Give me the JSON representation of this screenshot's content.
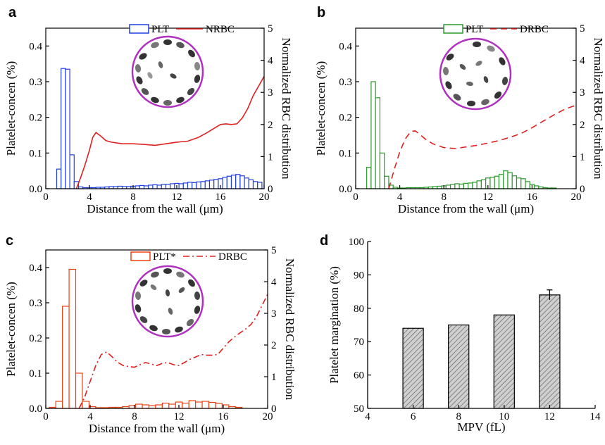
{
  "chart_data": [
    {
      "panel": "a",
      "type": "bar+line",
      "xlabel": "Distance from the wall (μm)",
      "ylabel": "Platelet-concen (%)",
      "y2label": "Normalized RBC distribution",
      "xlim": [
        0,
        20
      ],
      "ylim": [
        0,
        0.45
      ],
      "y2lim": [
        0,
        5
      ],
      "xticks": [
        "0",
        "4",
        "8",
        "12",
        "16",
        "20"
      ],
      "yticks": [
        "0.0",
        "0.1",
        "0.2",
        "0.3",
        "0.4"
      ],
      "y2ticks": [
        "0",
        "1",
        "2",
        "3",
        "4",
        "5"
      ],
      "legend": {
        "position": "top-right",
        "entries": [
          "PLT",
          "NRBC"
        ]
      },
      "bar_color": "#1f3fe0",
      "line_color": "#e02020",
      "line_style": "solid",
      "bar_width": 0.4,
      "bars": {
        "name": "PLT",
        "x": [
          1.2,
          1.6,
          2.0,
          2.4,
          2.8,
          3.2,
          3.6,
          4.0,
          4.4,
          4.8,
          5.2,
          5.6,
          6.0,
          6.4,
          6.8,
          7.2,
          7.6,
          8.0,
          8.4,
          8.8,
          9.2,
          9.6,
          10.0,
          10.4,
          10.8,
          11.2,
          11.6,
          12.0,
          12.4,
          12.8,
          13.2,
          13.6,
          14.0,
          14.4,
          14.8,
          15.2,
          15.6,
          16.0,
          16.4,
          16.8,
          17.2,
          17.6,
          18.0,
          18.4,
          18.8,
          19.2,
          19.6
        ],
        "values": [
          0.055,
          0.337,
          0.335,
          0.095,
          0.02,
          0.005,
          0.003,
          0.003,
          0.003,
          0.004,
          0.004,
          0.005,
          0.006,
          0.006,
          0.007,
          0.006,
          0.006,
          0.007,
          0.008,
          0.009,
          0.008,
          0.01,
          0.011,
          0.01,
          0.012,
          0.012,
          0.014,
          0.015,
          0.014,
          0.016,
          0.018,
          0.017,
          0.019,
          0.02,
          0.022,
          0.024,
          0.026,
          0.028,
          0.032,
          0.035,
          0.038,
          0.04,
          0.036,
          0.03,
          0.025,
          0.02,
          0.018
        ]
      },
      "line": {
        "name": "NRBC",
        "x": [
          2.8,
          3.2,
          3.6,
          4.0,
          4.3,
          4.6,
          5.0,
          5.5,
          6.0,
          7.0,
          8.0,
          9.0,
          10.0,
          11.0,
          12.0,
          13.0,
          14.0,
          14.8,
          15.5,
          16.0,
          16.5,
          17.0,
          17.5,
          18.0,
          18.5,
          19.0,
          19.5,
          20.0
        ],
        "values": [
          0.0,
          0.35,
          0.75,
          1.2,
          1.6,
          1.75,
          1.65,
          1.5,
          1.45,
          1.4,
          1.4,
          1.38,
          1.35,
          1.4,
          1.45,
          1.48,
          1.6,
          1.75,
          1.9,
          2.0,
          2.02,
          2.0,
          2.02,
          2.2,
          2.5,
          2.9,
          3.2,
          3.5
        ]
      }
    },
    {
      "panel": "b",
      "type": "bar+line",
      "xlabel": "Distance from the wall (μm)",
      "ylabel": "Platelet-concen (%)",
      "y2label": "Normalized RBC distribution",
      "xlim": [
        0,
        20
      ],
      "ylim": [
        0,
        0.45
      ],
      "y2lim": [
        0,
        5
      ],
      "xticks": [
        "0",
        "4",
        "8",
        "12",
        "16",
        "20"
      ],
      "yticks": [
        "0.0",
        "0.1",
        "0.2",
        "0.3",
        "0.4"
      ],
      "y2ticks": [
        "0",
        "1",
        "2",
        "3",
        "4",
        "5"
      ],
      "legend": {
        "position": "top-right",
        "entries": [
          "PLT",
          "DRBC"
        ]
      },
      "bar_color": "#2a9a2a",
      "line_color": "#e02020",
      "line_style": "dashed",
      "bar_width": 0.4,
      "bars": {
        "name": "PLT",
        "x": [
          1.2,
          1.6,
          2.0,
          2.4,
          2.8,
          3.2,
          3.6,
          4.0,
          4.4,
          4.8,
          5.2,
          5.6,
          6.0,
          6.4,
          6.8,
          7.2,
          7.6,
          8.0,
          8.4,
          8.8,
          9.2,
          9.6,
          10.0,
          10.4,
          10.8,
          11.2,
          11.6,
          12.0,
          12.4,
          12.8,
          13.2,
          13.6,
          14.0,
          14.4,
          14.8,
          15.2,
          15.6,
          16.0,
          16.4,
          16.8,
          17.2,
          17.6,
          18.0
        ],
        "values": [
          0.06,
          0.3,
          0.255,
          0.1,
          0.035,
          0.01,
          0.004,
          0.002,
          0.002,
          0.003,
          0.003,
          0.003,
          0.003,
          0.004,
          0.005,
          0.006,
          0.007,
          0.008,
          0.01,
          0.012,
          0.014,
          0.013,
          0.015,
          0.016,
          0.018,
          0.022,
          0.025,
          0.03,
          0.032,
          0.035,
          0.04,
          0.05,
          0.045,
          0.036,
          0.03,
          0.028,
          0.02,
          0.012,
          0.008,
          0.005,
          0.003,
          0.002,
          0.002
        ]
      },
      "line": {
        "name": "DRBC",
        "x": [
          3.0,
          3.5,
          4.0,
          4.5,
          5.0,
          5.4,
          5.8,
          6.3,
          7.0,
          8.0,
          9.0,
          10.0,
          11.0,
          12.0,
          13.0,
          14.0,
          15.0,
          16.0,
          17.0,
          18.0,
          19.0,
          20.0
        ],
        "values": [
          0.0,
          0.6,
          1.15,
          1.55,
          1.78,
          1.8,
          1.7,
          1.55,
          1.4,
          1.28,
          1.25,
          1.3,
          1.35,
          1.42,
          1.5,
          1.6,
          1.72,
          1.9,
          2.1,
          2.3,
          2.48,
          2.6
        ]
      }
    },
    {
      "panel": "c",
      "type": "bar+line",
      "xlabel": "Distance from the wall (μm)",
      "ylabel": "Platelet-concen (%)",
      "y2label": "Normalized RBC distribution",
      "xlim": [
        0,
        20
      ],
      "ylim": [
        0,
        0.45
      ],
      "y2lim": [
        0,
        5
      ],
      "xticks": [
        "0",
        "4",
        "8",
        "12",
        "16",
        "20"
      ],
      "yticks": [
        "0.0",
        "0.1",
        "0.2",
        "0.3",
        "0.4"
      ],
      "y2ticks": [
        "0",
        "1",
        "2",
        "3",
        "4",
        "5"
      ],
      "legend": {
        "position": "top-right",
        "entries": [
          "PLT*",
          "DRBC"
        ]
      },
      "bar_color": "#ee4010",
      "line_color": "#e02020",
      "line_style": "dashdot",
      "bar_width": 0.6,
      "bars": {
        "name": "PLT*",
        "x": [
          0.6,
          1.2,
          1.8,
          2.4,
          3.0,
          3.6,
          4.2,
          4.8,
          5.4,
          6.0,
          6.6,
          7.2,
          7.8,
          8.4,
          9.0,
          9.6,
          10.2,
          10.8,
          11.4,
          12.0,
          12.6,
          13.2,
          13.8,
          14.4,
          15.0,
          15.6,
          16.2,
          16.8,
          17.4
        ],
        "values": [
          0.003,
          0.02,
          0.29,
          0.395,
          0.1,
          0.02,
          0.005,
          0.002,
          0.002,
          0.003,
          0.003,
          0.005,
          0.008,
          0.012,
          0.01,
          0.008,
          0.01,
          0.015,
          0.012,
          0.018,
          0.015,
          0.022,
          0.018,
          0.02,
          0.017,
          0.014,
          0.01,
          0.005,
          0.003
        ]
      },
      "line": {
        "name": "DRBC",
        "x": [
          3.0,
          3.5,
          4.0,
          4.5,
          5.0,
          5.5,
          6.0,
          6.5,
          7.0,
          7.5,
          8.0,
          8.5,
          9.0,
          9.5,
          10.0,
          10.5,
          11.0,
          11.5,
          12.0,
          12.5,
          13.0,
          13.5,
          14.0,
          14.5,
          15.0,
          15.5,
          16.0,
          16.5,
          17.0,
          17.5,
          18.0,
          18.5,
          19.0,
          19.5,
          20.0
        ],
        "values": [
          0.0,
          0.35,
          0.85,
          1.35,
          1.7,
          1.78,
          1.62,
          1.45,
          1.35,
          1.32,
          1.3,
          1.38,
          1.45,
          1.4,
          1.35,
          1.42,
          1.45,
          1.38,
          1.35,
          1.45,
          1.55,
          1.62,
          1.7,
          1.68,
          1.68,
          1.7,
          1.9,
          2.1,
          2.25,
          2.38,
          2.5,
          2.65,
          2.9,
          3.25,
          3.6
        ]
      }
    },
    {
      "panel": "d",
      "type": "bar",
      "xlabel": "MPV (fL)",
      "ylabel": "Platelet margination (%)",
      "xlim": [
        4,
        14
      ],
      "ylim": [
        50,
        100
      ],
      "xticks": [
        "4",
        "6",
        "8",
        "10",
        "12",
        "14"
      ],
      "yticks": [
        "50",
        "60",
        "70",
        "80",
        "90",
        "100"
      ],
      "x": [
        6,
        8,
        10,
        12
      ],
      "values": [
        74,
        75,
        78,
        84
      ],
      "error": [
        0,
        0,
        0,
        1.5
      ],
      "bar_width": 0.9,
      "bar_color": "#c0c0c0",
      "hatch": "diagonal"
    }
  ]
}
